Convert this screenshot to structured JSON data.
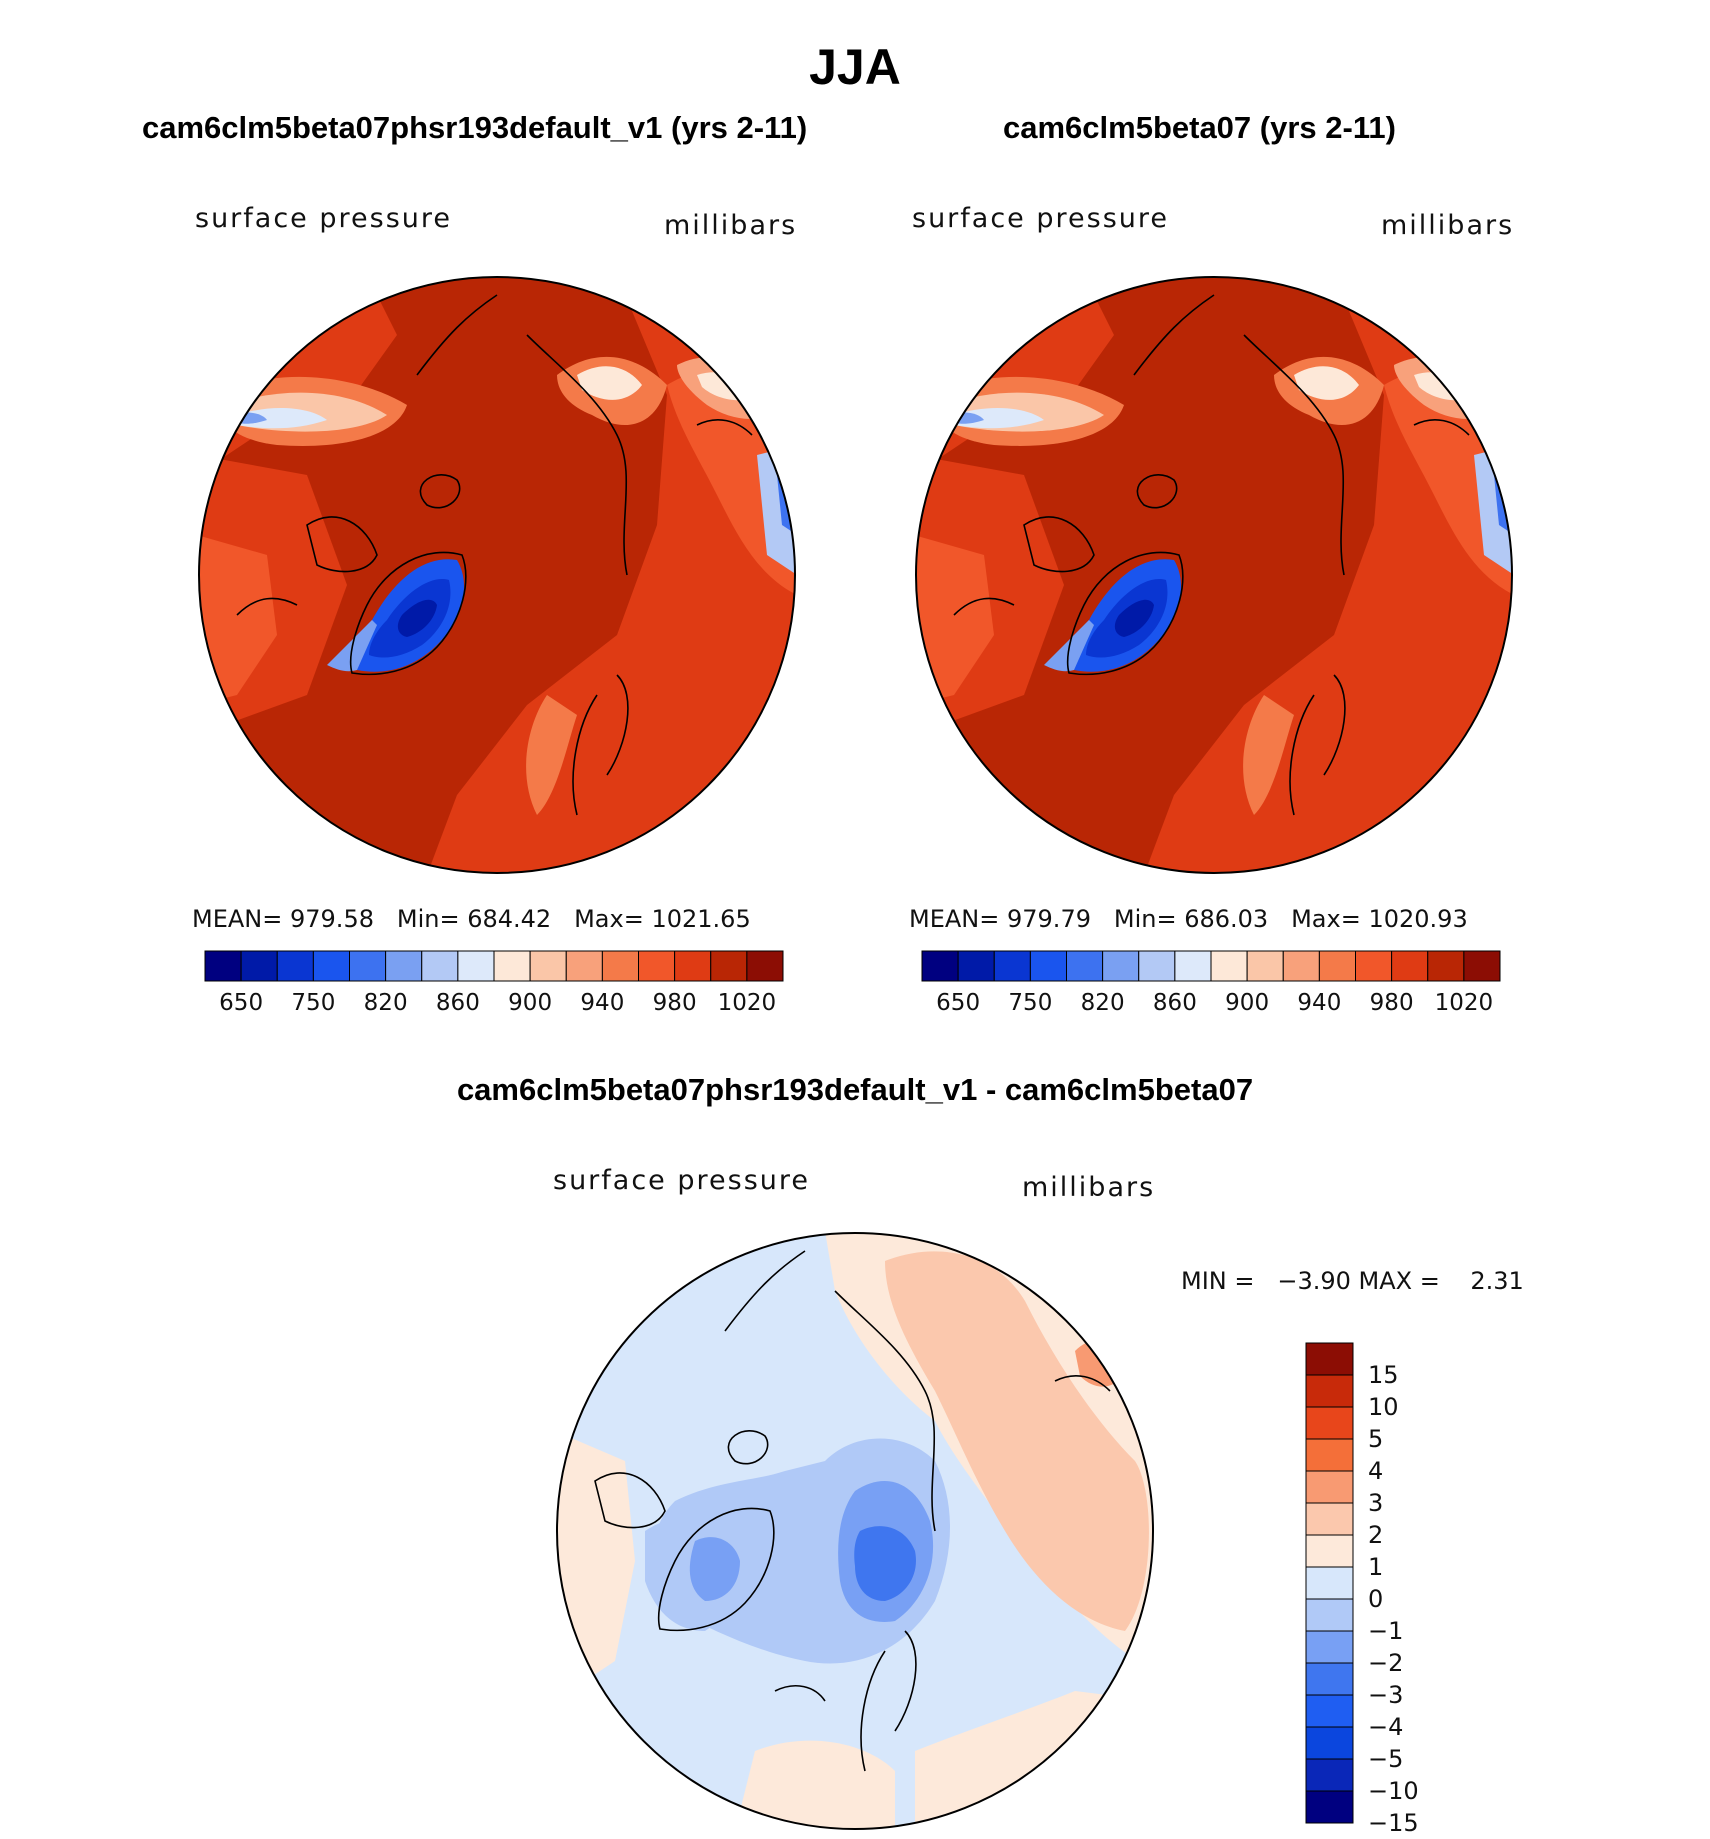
{
  "title": "JJA",
  "palette": {
    "abs": [
      "#000080",
      "#001aa8",
      "#0a36d2",
      "#1a55ee",
      "#3d72f0",
      "#7aa0f2",
      "#b3c9f5",
      "#dde9fa",
      "#fde8d8",
      "#fac6a8",
      "#f8a17b",
      "#f47a49",
      "#f1572a",
      "#df3b14",
      "#b92605",
      "#8c0d04"
    ],
    "diff": [
      "#000080",
      "#0a27b8",
      "#0b46de",
      "#1f5ef2",
      "#3f76ef",
      "#78a0f4",
      "#b0c9f7",
      "#d7e7fb",
      "#fde9da",
      "#fbc8ad",
      "#f89a72",
      "#f46f39",
      "#e8461b",
      "#c82a0a",
      "#8c0d04"
    ]
  },
  "chart_data": [
    {
      "type": "heatmap",
      "projection": "north-polar-stereographic",
      "title": "cam6clm5beta07phsr193default_v1 (yrs 2-11)",
      "left_label": "surface pressure",
      "right_label": "millibars",
      "stats": {
        "mean_label": "MEAN=",
        "mean": "979.58",
        "min_label": "Min=",
        "min": "684.42",
        "max_label": "Max=",
        "max": "1021.65"
      },
      "colorbar_labels": [
        "650",
        "750",
        "820",
        "860",
        "900",
        "940",
        "980",
        "1020"
      ]
    },
    {
      "type": "heatmap",
      "projection": "north-polar-stereographic",
      "title": "cam6clm5beta07 (yrs 2-11)",
      "left_label": "surface pressure",
      "right_label": "millibars",
      "stats": {
        "mean_label": "MEAN=",
        "mean": "979.79",
        "min_label": "Min=",
        "min": "686.03",
        "max_label": "Max=",
        "max": "1020.93"
      },
      "colorbar_labels": [
        "650",
        "750",
        "820",
        "860",
        "900",
        "940",
        "980",
        "1020"
      ]
    },
    {
      "type": "heatmap",
      "projection": "north-polar-stereographic",
      "title": "cam6clm5beta07phsr193default_v1 - cam6clm5beta07",
      "left_label": "surface pressure",
      "right_label": "millibars",
      "stats_text": "MIN =   −3.90 MAX =    2.31",
      "colorbar_labels": [
        "15",
        "10",
        "5",
        "4",
        "3",
        "2",
        "1",
        "0",
        "−1",
        "−2",
        "−3",
        "−4",
        "−5",
        "−10",
        "−15"
      ]
    }
  ]
}
